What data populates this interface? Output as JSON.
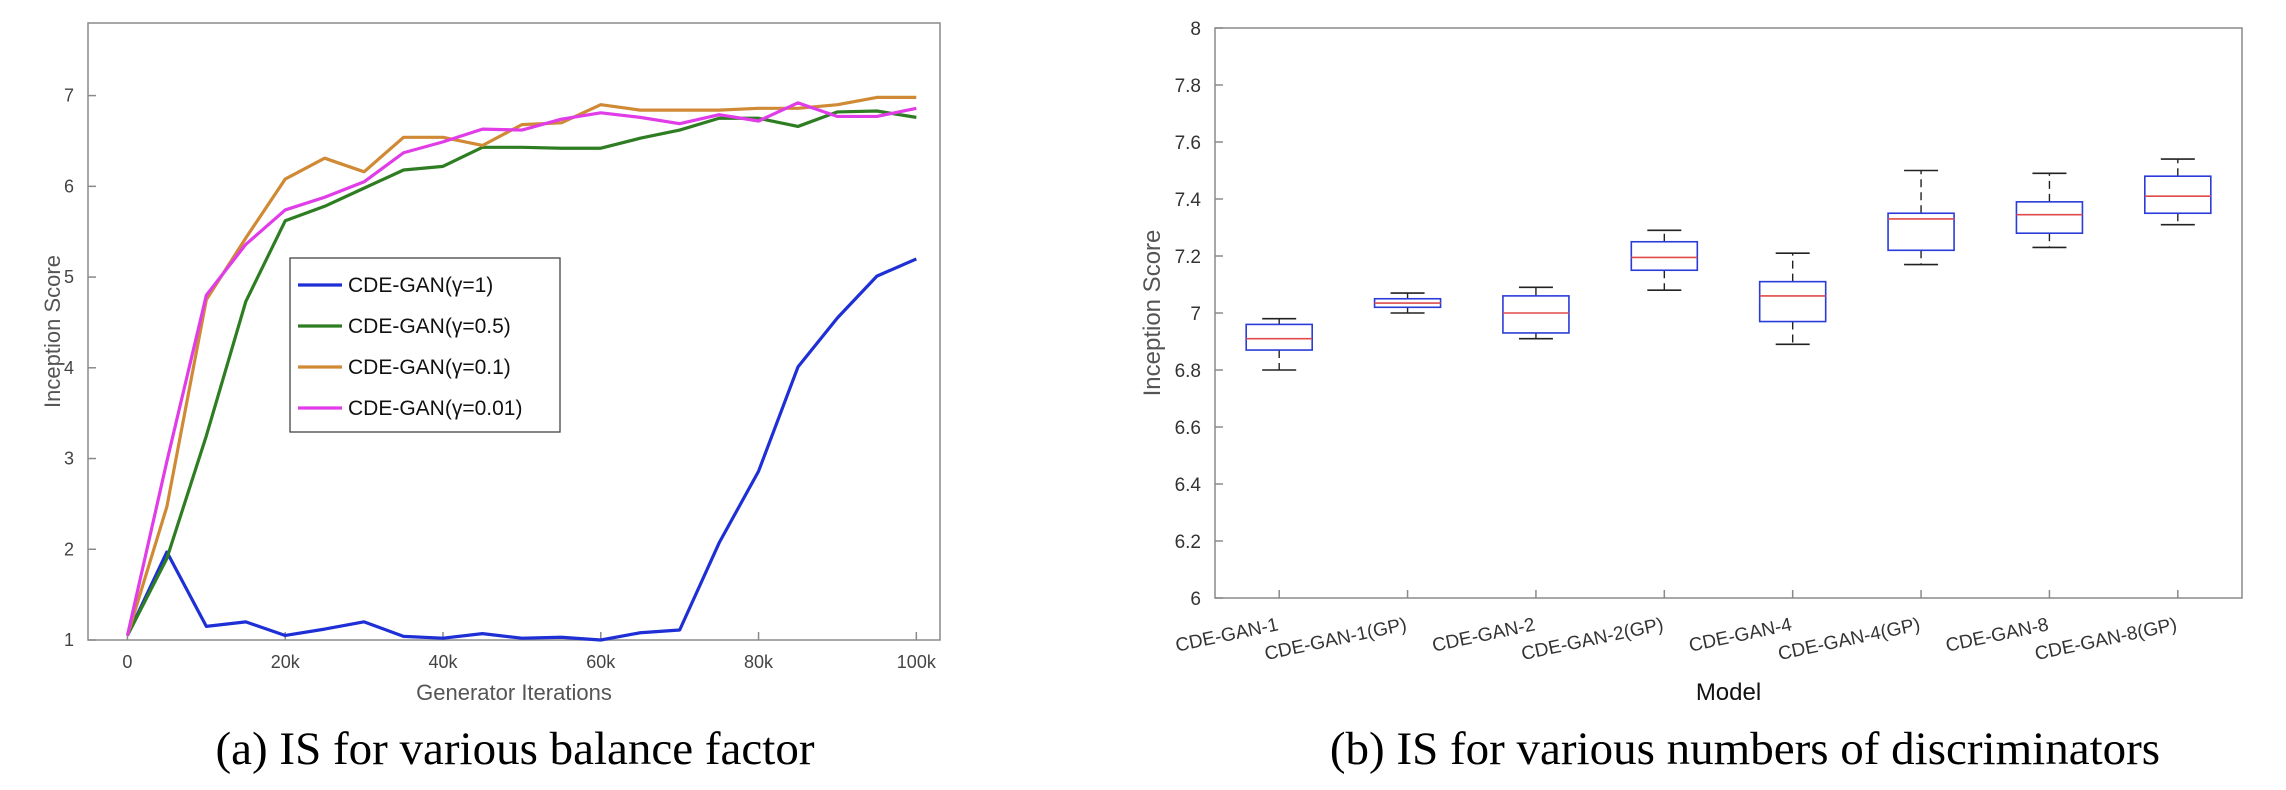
{
  "captions": {
    "a": "(a) IS for various balance factor",
    "b": "(b) IS for various numbers of discriminators"
  },
  "chart_data": [
    {
      "type": "line",
      "title": "",
      "xlabel": "Generator Iterations",
      "ylabel": "Inception Score",
      "xlim": [
        -5000,
        103000
      ],
      "ylim": [
        1,
        7.8
      ],
      "xticks": [
        0,
        20000,
        40000,
        60000,
        80000,
        100000
      ],
      "xtick_labels": [
        "0",
        "20k",
        "40k",
        "60k",
        "80k",
        "100k"
      ],
      "yticks": [
        1,
        2,
        3,
        4,
        5,
        6,
        7
      ],
      "ytick_labels": [
        "1",
        "2",
        "3",
        "4",
        "5",
        "6",
        "7"
      ],
      "grid": false,
      "legend_position": "center",
      "x": [
        0,
        5000,
        10000,
        15000,
        20000,
        25000,
        30000,
        35000,
        40000,
        45000,
        50000,
        55000,
        60000,
        65000,
        70000,
        75000,
        80000,
        85000,
        90000,
        95000,
        100000
      ],
      "series": [
        {
          "name": "CDE-GAN(γ=1)",
          "color": "#1f2fd6",
          "values": [
            1.05,
            1.97,
            1.15,
            1.2,
            1.05,
            1.12,
            1.2,
            1.04,
            1.02,
            1.07,
            1.02,
            1.03,
            1.0,
            1.08,
            1.11,
            2.07,
            2.86,
            4.01,
            4.55,
            5.01,
            5.2
          ]
        },
        {
          "name": "CDE-GAN(γ=0.5)",
          "color": "#2e7d22",
          "values": [
            1.05,
            1.9,
            3.25,
            4.73,
            5.62,
            5.78,
            5.98,
            6.18,
            6.22,
            6.43,
            6.43,
            6.42,
            6.42,
            6.53,
            6.62,
            6.75,
            6.75,
            6.66,
            6.82,
            6.83,
            6.76
          ]
        },
        {
          "name": "CDE-GAN(γ=0.1)",
          "color": "#d08a36",
          "values": [
            1.05,
            2.47,
            4.75,
            5.43,
            6.08,
            6.31,
            6.16,
            6.54,
            6.54,
            6.45,
            6.68,
            6.7,
            6.9,
            6.84,
            6.84,
            6.84,
            6.86,
            6.86,
            6.9,
            6.98,
            6.98
          ]
        },
        {
          "name": "CDE-GAN(γ=0.01)",
          "color": "#e03ce8",
          "values": [
            1.05,
            2.97,
            4.8,
            5.36,
            5.74,
            5.88,
            6.05,
            6.37,
            6.49,
            6.63,
            6.62,
            6.74,
            6.81,
            6.76,
            6.69,
            6.79,
            6.72,
            6.92,
            6.77,
            6.77,
            6.86
          ]
        }
      ]
    },
    {
      "type": "box",
      "title": "",
      "xlabel": "Model",
      "ylabel": "Inception Score",
      "ylim": [
        6,
        8
      ],
      "yticks": [
        6,
        6.2,
        6.4,
        6.6,
        6.8,
        7,
        7.2,
        7.4,
        7.6,
        7.8,
        8
      ],
      "ytick_labels": [
        "6",
        "6.2",
        "6.4",
        "6.6",
        "6.8",
        "7",
        "7.2",
        "7.4",
        "7.6",
        "7.8",
        "8"
      ],
      "grid": false,
      "box_color": "#2a3bd9",
      "median_color": "#e04a4a",
      "whisker_color": "#222222",
      "categories": [
        "CDE-GAN-1",
        "CDE-GAN-1(GP)",
        "CDE-GAN-2",
        "CDE-GAN-2(GP)",
        "CDE-GAN-4",
        "CDE-GAN-4(GP)",
        "CDE-GAN-8",
        "CDE-GAN-8(GP)"
      ],
      "boxes": [
        {
          "min": 6.8,
          "q1": 6.87,
          "median": 6.91,
          "q3": 6.96,
          "max": 6.98
        },
        {
          "min": 7.0,
          "q1": 7.02,
          "median": 7.035,
          "q3": 7.05,
          "max": 7.07
        },
        {
          "min": 6.91,
          "q1": 6.93,
          "median": 7.0,
          "q3": 7.06,
          "max": 7.09
        },
        {
          "min": 7.08,
          "q1": 7.15,
          "median": 7.195,
          "q3": 7.25,
          "max": 7.29
        },
        {
          "min": 6.89,
          "q1": 6.97,
          "median": 7.06,
          "q3": 7.11,
          "max": 7.21
        },
        {
          "min": 7.17,
          "q1": 7.22,
          "median": 7.33,
          "q3": 7.35,
          "max": 7.5
        },
        {
          "min": 7.23,
          "q1": 7.28,
          "median": 7.345,
          "q3": 7.39,
          "max": 7.49
        },
        {
          "min": 7.31,
          "q1": 7.35,
          "median": 7.41,
          "q3": 7.48,
          "max": 7.54
        }
      ]
    }
  ]
}
